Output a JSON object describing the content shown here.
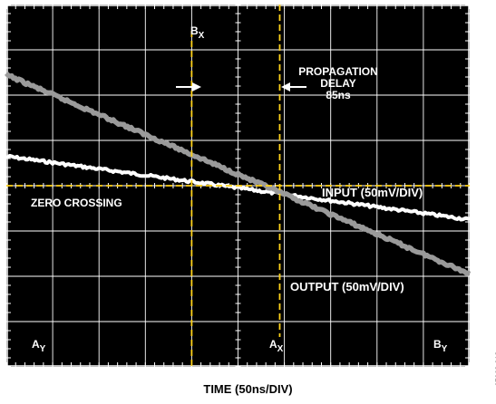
{
  "chart_data": {
    "type": "line",
    "title": "",
    "xlabel": "TIME (50ns/DIV)",
    "ylabel": "",
    "xlim": [
      0,
      10
    ],
    "ylim": [
      -4,
      4
    ],
    "grid": true,
    "series": [
      {
        "name": "INPUT (50mV/DIV)",
        "color": "#ffffff",
        "x": [
          0,
          10
        ],
        "y": [
          0.65,
          -0.75
        ]
      },
      {
        "name": "OUTPUT (50mV/DIV)",
        "color": "#9a9a9a",
        "x": [
          0,
          10
        ],
        "y": [
          2.45,
          -1.95
        ]
      }
    ],
    "cursors": {
      "bx": {
        "label_main": "B",
        "label_sub": "X",
        "x": 4.0
      },
      "ax": {
        "label_main": "A",
        "label_sub": "X",
        "x": 5.9
      },
      "zero_level": 0
    },
    "annotations": {
      "zero_crossing": "ZERO CROSSING",
      "propagation_line1": "PROPAGATION",
      "propagation_line2": "DELAY",
      "propagation_value": "85ns",
      "input_label": "INPUT (50mV/DIV)",
      "output_label": "OUTPUT (50mV/DIV)",
      "ay_main": "A",
      "ay_sub": "Y",
      "by_main": "B",
      "by_sub": "Y"
    },
    "colors": {
      "screen": "#000000",
      "grid": "#ffffff",
      "cursor": "#ffd21a",
      "input": "#ffffff",
      "output": "#9a9a9a"
    }
  },
  "figure_id": "07062-013"
}
